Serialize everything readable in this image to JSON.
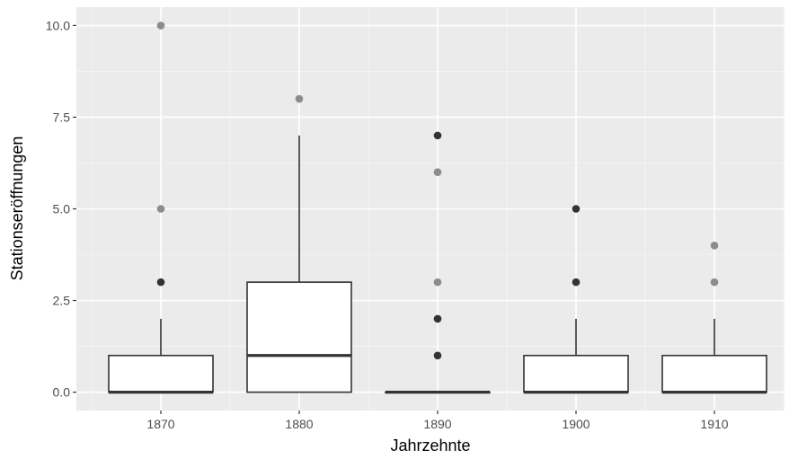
{
  "chart_data": {
    "type": "box",
    "title": "",
    "xlabel": "Jahrzehnte",
    "ylabel": "Stationseröffnungen",
    "categories": [
      "1870",
      "1880",
      "1890",
      "1900",
      "1910"
    ],
    "ylim": [
      -0.5,
      10.5
    ],
    "yticks": [
      0.0,
      2.5,
      5.0,
      7.5,
      10.0
    ],
    "ytick_labels": [
      "0.0",
      "2.5",
      "5.0",
      "7.5",
      "10.0"
    ],
    "grid": true,
    "boxes": [
      {
        "category": "1870",
        "q1": 0,
        "median": 0,
        "q3": 1,
        "whisker_low": 0,
        "whisker_high": 2,
        "outliers": [
          3,
          5,
          10
        ],
        "outlier_emphasis": [
          3
        ]
      },
      {
        "category": "1880",
        "q1": 0,
        "median": 1,
        "q3": 3,
        "whisker_low": 0,
        "whisker_high": 7,
        "outliers": [
          8
        ],
        "outlier_emphasis": []
      },
      {
        "category": "1890",
        "q1": 0,
        "median": 0,
        "q3": 0,
        "whisker_low": 0,
        "whisker_high": 0,
        "outliers": [
          1,
          2,
          3,
          6,
          7
        ],
        "outlier_emphasis": [
          1,
          2,
          7
        ]
      },
      {
        "category": "1900",
        "q1": 0,
        "median": 0,
        "q3": 1,
        "whisker_low": 0,
        "whisker_high": 2,
        "outliers": [
          3,
          5
        ],
        "outlier_emphasis": [
          3,
          5
        ]
      },
      {
        "category": "1910",
        "q1": 0,
        "median": 0,
        "q3": 1,
        "whisker_low": 0,
        "whisker_high": 2,
        "outliers": [
          3,
          4
        ],
        "outlier_emphasis": []
      }
    ],
    "colors": {
      "panel": "#ebebeb",
      "grid_major": "#ffffff",
      "grid_minor": "#f5f5f5",
      "box_fill": "#ffffff",
      "box_line": "#333333",
      "outlier": "#8c8c8c",
      "outlier_dark": "#333333",
      "tick": "#333333"
    }
  }
}
